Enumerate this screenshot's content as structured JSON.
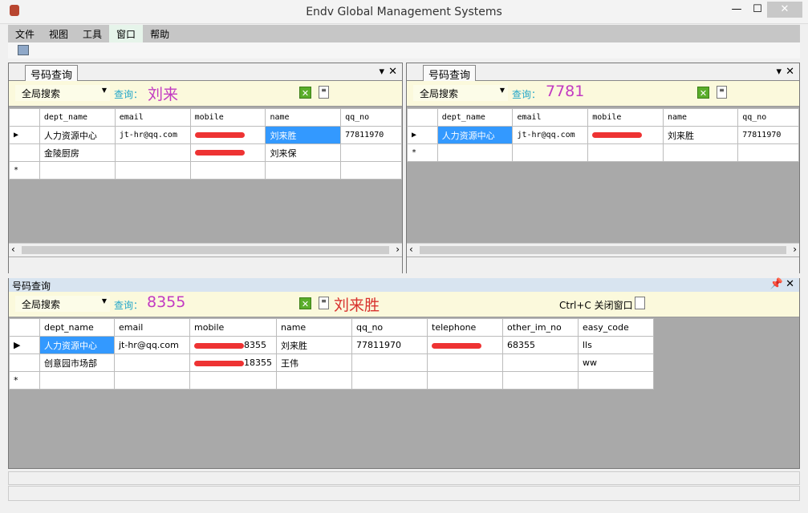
{
  "window": {
    "title": "Endv Global Management Systems",
    "minimize": "—",
    "maximize": "☐",
    "close": "✕"
  },
  "menu": [
    {
      "label": "文件"
    },
    {
      "label": "视图"
    },
    {
      "label": "工具"
    },
    {
      "label": "窗口",
      "active": true
    },
    {
      "label": "帮助"
    }
  ],
  "panels": [
    {
      "tab": "号码查询",
      "scope": "全局搜索",
      "query_label": "查询：",
      "query": "刘来",
      "columns": [
        "dept_name",
        "email",
        "mobile",
        "name",
        "qq_no"
      ],
      "rows": [
        [
          "人力资源中心",
          "jt-hr@qq.com",
          "[redacted]",
          "刘来胜",
          "77811970"
        ],
        [
          "金陵厨房",
          "",
          "[redacted]",
          "刘来保",
          ""
        ]
      ],
      "selected": [
        0,
        3
      ]
    },
    {
      "tab": "号码查询",
      "scope": "全局搜索",
      "query_label": "查询：",
      "query": "7781",
      "columns": [
        "dept_name",
        "email",
        "mobile",
        "name",
        "qq_no"
      ],
      "rows": [
        [
          "人力资源中心",
          "jt-hr@qq.com",
          "[redacted]",
          "刘来胜",
          "77811970"
        ]
      ],
      "selected": [
        0,
        0
      ]
    },
    {
      "tab": "号码查询",
      "scope": "全局搜索",
      "query_label": "查询：",
      "query": "8355",
      "result_name": "刘来胜",
      "shortcut": "Ctrl+C 关闭窗口",
      "columns": [
        "dept_name",
        "email",
        "mobile",
        "name",
        "qq_no",
        "telephone",
        "other_im_no",
        "easy_code"
      ],
      "rows": [
        [
          "人力资源中心",
          "jt-hr@qq.com",
          "[redacted]8355",
          "刘来胜",
          "77811970",
          "[redacted]",
          "68355",
          "lls"
        ],
        [
          "创意园市场部",
          "",
          "[redacted]18355",
          "王伟",
          "",
          "",
          "",
          "ww"
        ]
      ],
      "selected": [
        0,
        0
      ]
    }
  ],
  "colors": {
    "accent": "#3399ff",
    "query": "#c23ac2",
    "search_bg": "#fbf9dc",
    "grid_bg": "#a9a9a9",
    "redaction": "#e33333"
  }
}
